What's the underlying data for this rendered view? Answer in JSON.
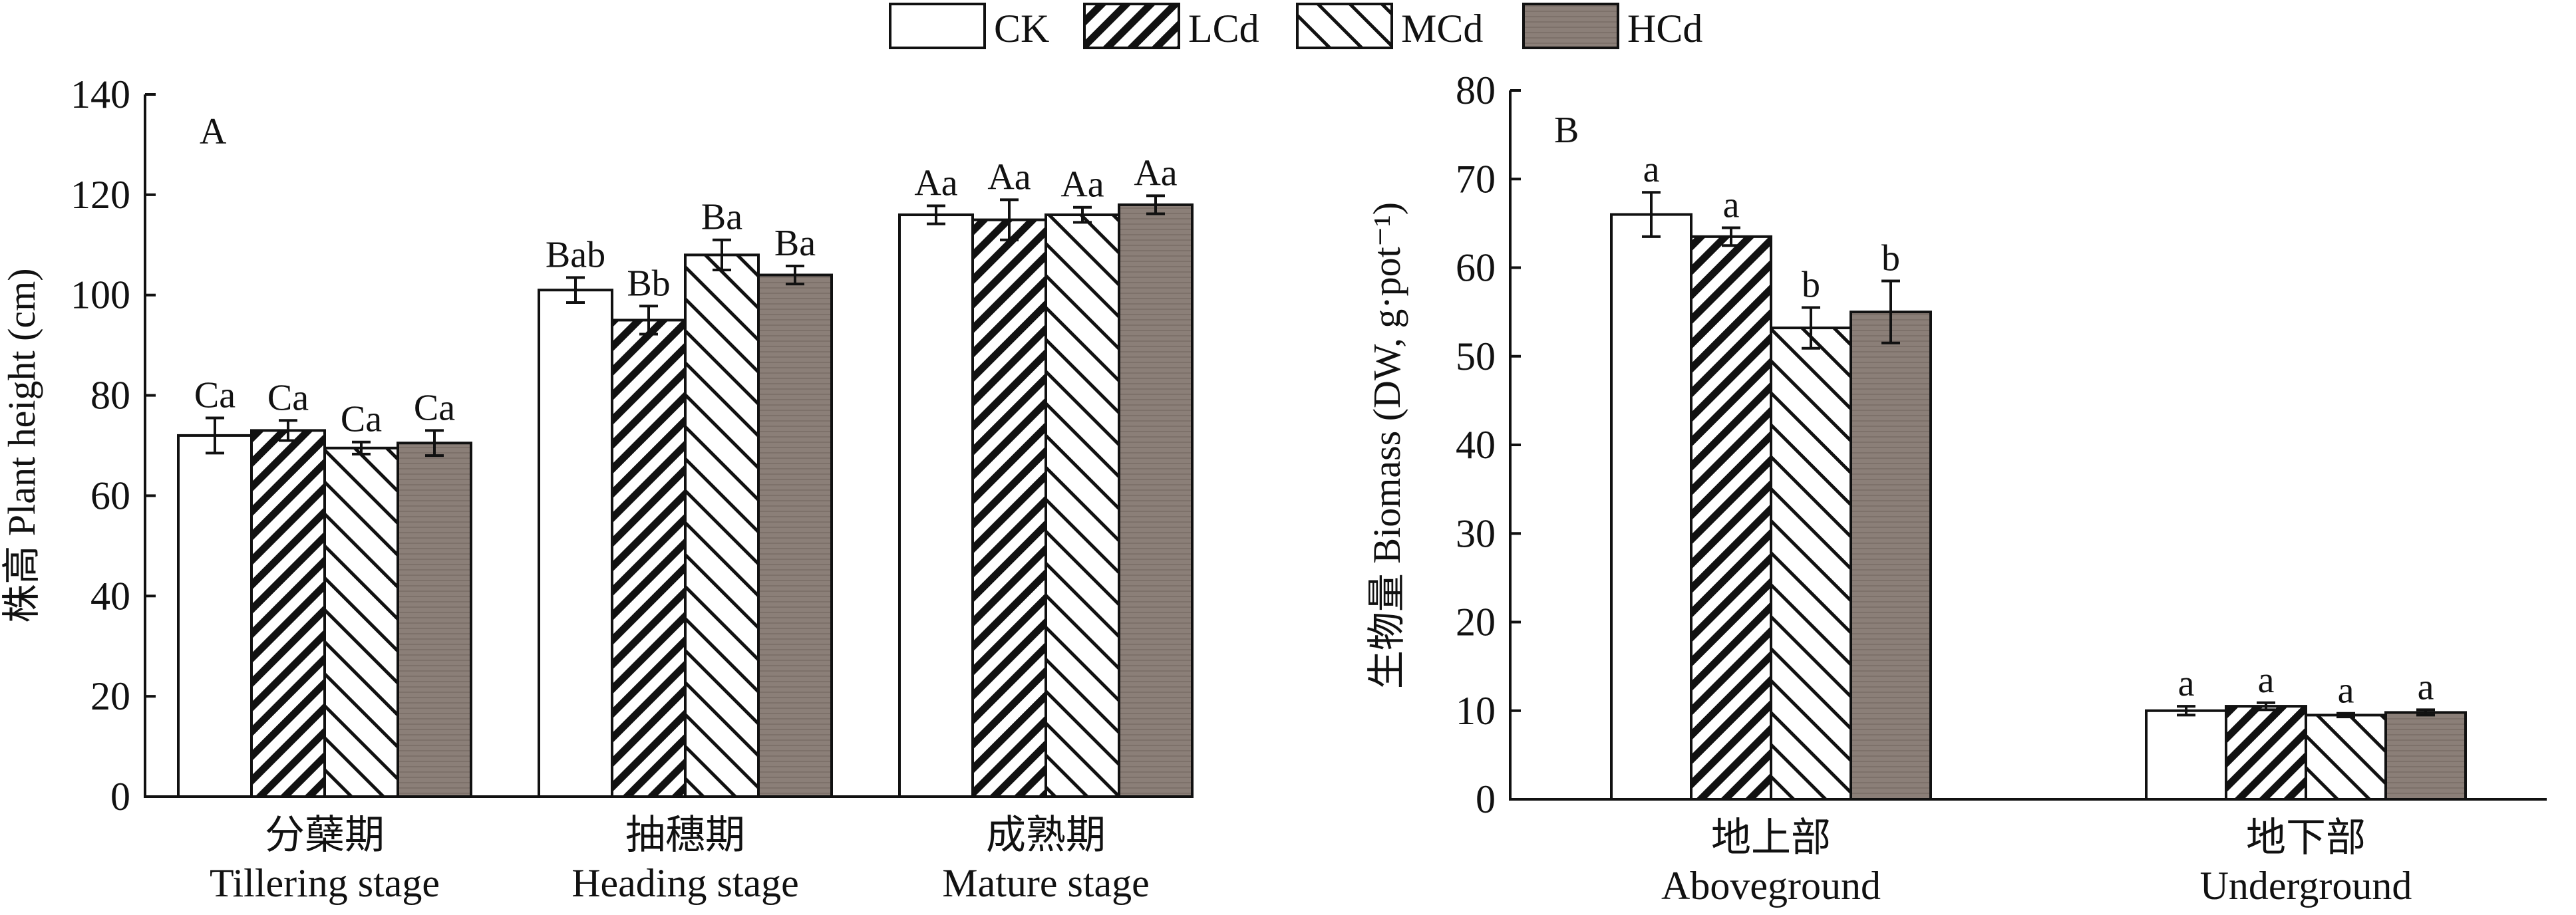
{
  "legend": {
    "entries": [
      "CK",
      "LCd",
      "MCd",
      "HCd"
    ]
  },
  "colors": {
    "axis": "#111111",
    "bar_stroke": "#111111",
    "hcd_fill": "#8b7f78",
    "ck_fill": "#ffffff"
  },
  "chart_data": [
    {
      "type": "bar",
      "panel_label": "A",
      "ylabel": "株高 Plant height (cm)",
      "ylim": [
        0,
        140
      ],
      "yticks": [
        0,
        20,
        40,
        60,
        80,
        100,
        120,
        140
      ],
      "categories": [
        {
          "cn": "分蘖期",
          "en": "Tillering stage"
        },
        {
          "cn": "抽穗期",
          "en": "Heading stage"
        },
        {
          "cn": "成熟期",
          "en": "Mature stage"
        }
      ],
      "series": [
        {
          "name": "CK",
          "values": [
            72.0,
            101.0,
            116.0
          ],
          "errors": [
            3.5,
            2.5,
            1.8
          ],
          "labels": [
            "Ca",
            "Bab",
            "Aa"
          ]
        },
        {
          "name": "LCd",
          "values": [
            73.0,
            95.0,
            115.0
          ],
          "errors": [
            2.0,
            2.8,
            4.0
          ],
          "labels": [
            "Ca",
            "Bb",
            "Aa"
          ]
        },
        {
          "name": "MCd",
          "values": [
            69.5,
            108.0,
            116.0
          ],
          "errors": [
            1.2,
            3.0,
            1.5
          ],
          "labels": [
            "Ca",
            "Ba",
            "Aa"
          ]
        },
        {
          "name": "HCd",
          "values": [
            70.5,
            104.0,
            118.0
          ],
          "errors": [
            2.5,
            1.8,
            1.8
          ],
          "labels": [
            "Ca",
            "Ba",
            "Aa"
          ]
        }
      ]
    },
    {
      "type": "bar",
      "panel_label": "B",
      "ylabel": "生物量 Biomass (DW, g·pot⁻¹)",
      "ylim": [
        0,
        80
      ],
      "yticks": [
        0,
        10,
        20,
        30,
        40,
        50,
        60,
        70,
        80
      ],
      "categories": [
        {
          "cn": "地上部",
          "en": "Aboveground"
        },
        {
          "cn": "地下部",
          "en": "Underground"
        }
      ],
      "series": [
        {
          "name": "CK",
          "values": [
            66.0,
            10.0
          ],
          "errors": [
            2.5,
            0.5
          ],
          "labels": [
            "a",
            "a"
          ]
        },
        {
          "name": "LCd",
          "values": [
            63.5,
            10.5
          ],
          "errors": [
            1.0,
            0.4
          ],
          "labels": [
            "a",
            "a"
          ]
        },
        {
          "name": "MCd",
          "values": [
            53.2,
            9.5
          ],
          "errors": [
            2.3,
            0.2
          ],
          "labels": [
            "b",
            "a"
          ]
        },
        {
          "name": "HCd",
          "values": [
            55.0,
            9.8
          ],
          "errors": [
            3.5,
            0.3
          ],
          "labels": [
            "b",
            "a"
          ]
        }
      ]
    }
  ]
}
